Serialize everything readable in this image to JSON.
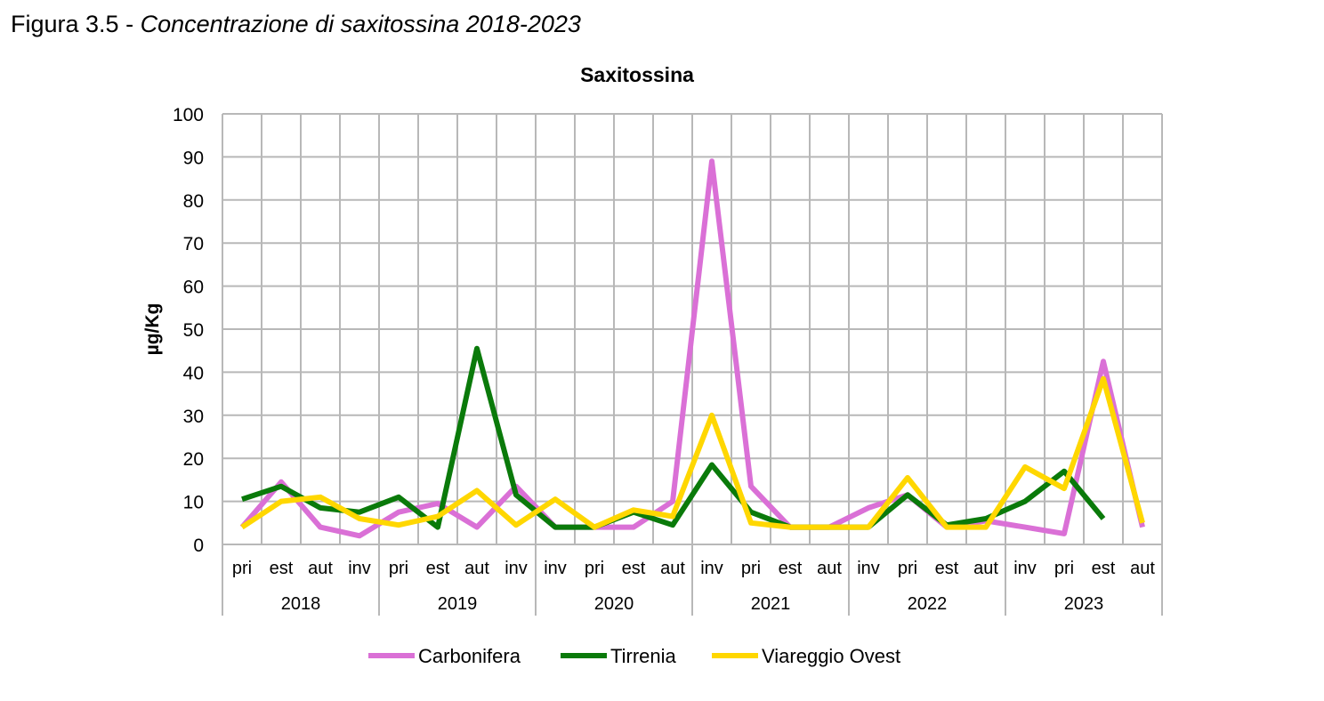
{
  "figure": {
    "prefix": "Figura 3.5 -",
    "subtitle": "Concentrazione di saxitossina 2018-2023"
  },
  "chart_data": {
    "type": "line",
    "title": "Saxitossina",
    "xlabel": "",
    "ylabel": "µg/Kg",
    "ylim": [
      0,
      100
    ],
    "yticks": [
      0,
      10,
      20,
      30,
      40,
      50,
      60,
      70,
      80,
      90,
      100
    ],
    "grid": true,
    "legend_position": "bottom",
    "categories": [
      "pri",
      "est",
      "aut",
      "inv",
      "pri",
      "est",
      "aut",
      "inv",
      "inv",
      "pri",
      "est",
      "aut",
      "inv",
      "pri",
      "est",
      "aut",
      "inv",
      "pri",
      "est",
      "aut",
      "inv",
      "pri",
      "est",
      "aut"
    ],
    "year_groups": [
      {
        "label": "2018",
        "start": 0,
        "count": 4
      },
      {
        "label": "2019",
        "start": 4,
        "count": 4
      },
      {
        "label": "2020",
        "start": 8,
        "count": 4
      },
      {
        "label": "2021",
        "start": 12,
        "count": 4
      },
      {
        "label": "2022",
        "start": 16,
        "count": 4
      },
      {
        "label": "2023",
        "start": 20,
        "count": 4
      }
    ],
    "series": [
      {
        "name": "Carbonifera",
        "color": "#DA70D6",
        "values": [
          4,
          14.5,
          4,
          2,
          7.5,
          9.5,
          4,
          13.5,
          4,
          4,
          4,
          10,
          89,
          13.5,
          4,
          4,
          8.5,
          11.5,
          4,
          5.5,
          4,
          2.5,
          42.5,
          4
        ]
      },
      {
        "name": "Tirrenia",
        "color": "#0A7A0A",
        "values": [
          10.5,
          13.5,
          8.5,
          7.5,
          11,
          4,
          45.5,
          11.5,
          4,
          4,
          7.5,
          4.5,
          18.5,
          7.5,
          4,
          4,
          4,
          11.5,
          4.5,
          6,
          10,
          17,
          6,
          null
        ]
      },
      {
        "name": "Viareggio Ovest",
        "color": "#FFD700",
        "values": [
          4,
          10,
          11,
          6,
          4.5,
          6.5,
          12.5,
          4.5,
          10.5,
          4,
          8,
          6.5,
          30,
          5,
          4,
          4,
          4,
          15.5,
          4,
          4,
          18,
          13,
          38.5,
          5
        ]
      }
    ]
  }
}
